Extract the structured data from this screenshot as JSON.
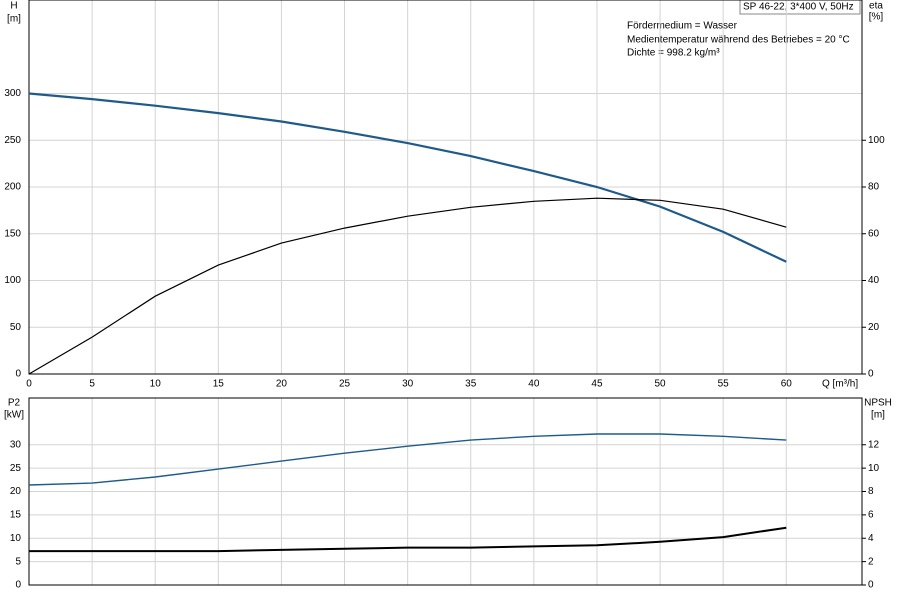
{
  "chart_data": [
    {
      "type": "line",
      "title": "SP 46-22, 3*400 V, 50Hz",
      "annotations": [
        "Fördermedium = Wasser",
        "Medientemperatur während des Betriebes = 20 °C",
        "Dichte = 998.2 kg/m³"
      ],
      "xlabel": "Q [m³/h]",
      "ylabel": "H",
      "yunit": "[m]",
      "y2label": "eta",
      "y2unit": "[%]",
      "x": [
        0,
        5,
        10,
        15,
        20,
        25,
        30,
        35,
        40,
        45,
        50,
        55,
        60
      ],
      "xlim": [
        0,
        66
      ],
      "xticks": [
        0,
        5,
        10,
        15,
        20,
        25,
        30,
        35,
        40,
        45,
        50,
        55,
        60
      ],
      "ylim": [
        0,
        400
      ],
      "yticks": [
        0,
        50,
        100,
        150,
        200,
        250,
        300
      ],
      "y2lim": [
        0,
        160
      ],
      "y2ticks": [
        0,
        20,
        40,
        60,
        80,
        100
      ],
      "grid": true,
      "series": [
        {
          "name": "H",
          "color": "#1f5b8a",
          "values": [
            300,
            294,
            287,
            279,
            270,
            259,
            247,
            233,
            217,
            200,
            179,
            152,
            120
          ]
        },
        {
          "name": "eta",
          "color": "#000000",
          "axis": "y2",
          "values": [
            0,
            15.8,
            33.3,
            46.6,
            56,
            62.4,
            67.5,
            71.3,
            73.9,
            75.2,
            74.3,
            70.5,
            62.8
          ]
        }
      ]
    },
    {
      "type": "line",
      "ylabel": "P2",
      "yunit": "[kW]",
      "y2label": "NPSH",
      "y2unit": "[m]",
      "x": [
        0,
        5,
        10,
        15,
        20,
        25,
        30,
        35,
        40,
        45,
        50,
        55,
        60
      ],
      "xlim": [
        0,
        66
      ],
      "ylim": [
        0,
        40
      ],
      "yticks": [
        0,
        5,
        10,
        15,
        20,
        25,
        30
      ],
      "y2lim": [
        0,
        16
      ],
      "y2ticks": [
        0,
        2,
        4,
        6,
        8,
        10,
        12
      ],
      "grid": true,
      "series": [
        {
          "name": "P2",
          "color": "#1f5b8a",
          "values": [
            21.4,
            21.8,
            23.1,
            24.8,
            26.5,
            28.2,
            29.7,
            31.0,
            31.8,
            32.3,
            32.3,
            31.8,
            31.0
          ]
        },
        {
          "name": "NPSH",
          "color": "#000000",
          "axis": "y2",
          "values": [
            2.9,
            2.9,
            2.9,
            2.9,
            3.0,
            3.1,
            3.2,
            3.2,
            3.3,
            3.4,
            3.7,
            4.1,
            4.9
          ]
        }
      ]
    }
  ]
}
